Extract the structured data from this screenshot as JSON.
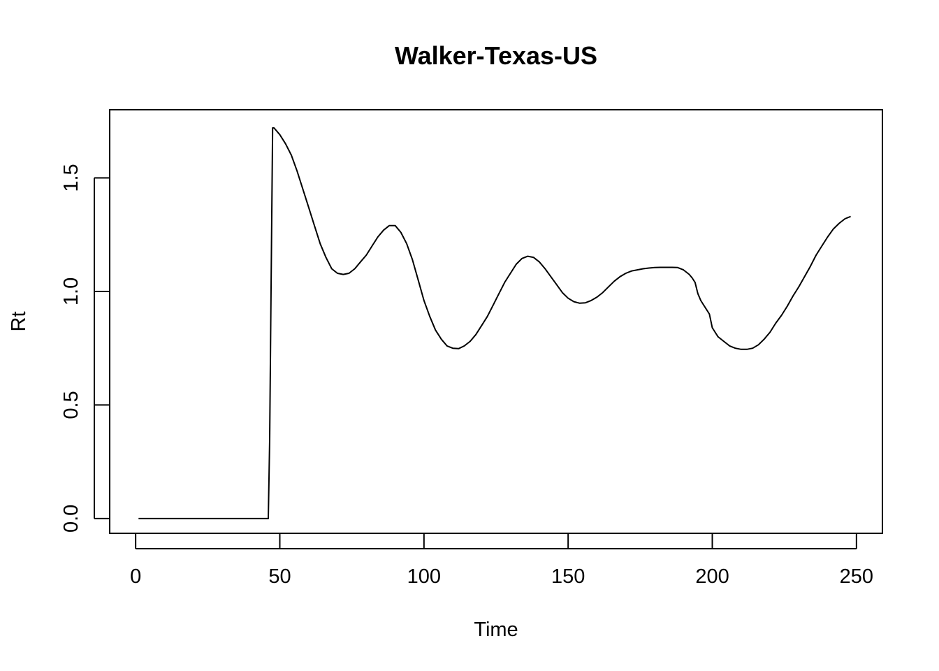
{
  "chart_data": {
    "type": "line",
    "title": "Walker-Texas-US",
    "xlabel": "Time",
    "ylabel": "Rt",
    "xlim": [
      -9,
      259
    ],
    "ylim": [
      -0.065,
      1.8
    ],
    "xticks": [
      0,
      50,
      100,
      150,
      200,
      250
    ],
    "yticks": [
      0.0,
      0.5,
      1.0,
      1.5
    ],
    "xtick_labels": [
      "0",
      "50",
      "100",
      "150",
      "200",
      "250"
    ],
    "ytick_labels": [
      "0.0",
      "0.5",
      "1.0",
      "1.5"
    ],
    "grid": false,
    "legend": "none",
    "line_color": "#000000",
    "series": [
      {
        "x": [
          1,
          10,
          20,
          30,
          40,
          46,
          46.5,
          47,
          47.5,
          48,
          50,
          52,
          54,
          56,
          58,
          60,
          62,
          64,
          66,
          68,
          70,
          72,
          74,
          76,
          78,
          80,
          82,
          84,
          86,
          88,
          90,
          92,
          94,
          96,
          98,
          100,
          102,
          104,
          106,
          108,
          110,
          112,
          114,
          116,
          118,
          120,
          122,
          124,
          126,
          128,
          130,
          132,
          134,
          136,
          138,
          140,
          142,
          144,
          146,
          148,
          150,
          152,
          154,
          156,
          158,
          160,
          162,
          164,
          166,
          168,
          170,
          172,
          174,
          176,
          178,
          180,
          182,
          184,
          186,
          188,
          190,
          192,
          193,
          194,
          195,
          196,
          197,
          198,
          199,
          200,
          201,
          202,
          204,
          206,
          208,
          210,
          212,
          214,
          216,
          218,
          220,
          222,
          224,
          226,
          228,
          230,
          232,
          234,
          236,
          238,
          240,
          242,
          244,
          246,
          248
        ],
        "y": [
          0,
          0,
          0,
          0,
          0,
          0,
          0.35,
          1.05,
          1.72,
          1.72,
          1.69,
          1.65,
          1.6,
          1.53,
          1.45,
          1.37,
          1.29,
          1.21,
          1.15,
          1.1,
          1.08,
          1.075,
          1.08,
          1.1,
          1.13,
          1.16,
          1.2,
          1.24,
          1.27,
          1.29,
          1.29,
          1.26,
          1.21,
          1.14,
          1.05,
          0.96,
          0.89,
          0.83,
          0.79,
          0.76,
          0.75,
          0.748,
          0.76,
          0.78,
          0.81,
          0.85,
          0.89,
          0.94,
          0.99,
          1.04,
          1.08,
          1.12,
          1.145,
          1.155,
          1.15,
          1.13,
          1.1,
          1.065,
          1.03,
          0.995,
          0.97,
          0.955,
          0.948,
          0.95,
          0.96,
          0.975,
          0.995,
          1.02,
          1.045,
          1.065,
          1.08,
          1.09,
          1.095,
          1.1,
          1.103,
          1.105,
          1.106,
          1.106,
          1.106,
          1.105,
          1.095,
          1.075,
          1.06,
          1.04,
          0.99,
          0.96,
          0.94,
          0.92,
          0.9,
          0.84,
          0.82,
          0.8,
          0.78,
          0.76,
          0.75,
          0.745,
          0.745,
          0.75,
          0.765,
          0.79,
          0.82,
          0.86,
          0.895,
          0.935,
          0.98,
          1.02,
          1.065,
          1.11,
          1.16,
          1.2,
          1.24,
          1.275,
          1.3,
          1.32,
          1.33
        ]
      }
    ]
  }
}
